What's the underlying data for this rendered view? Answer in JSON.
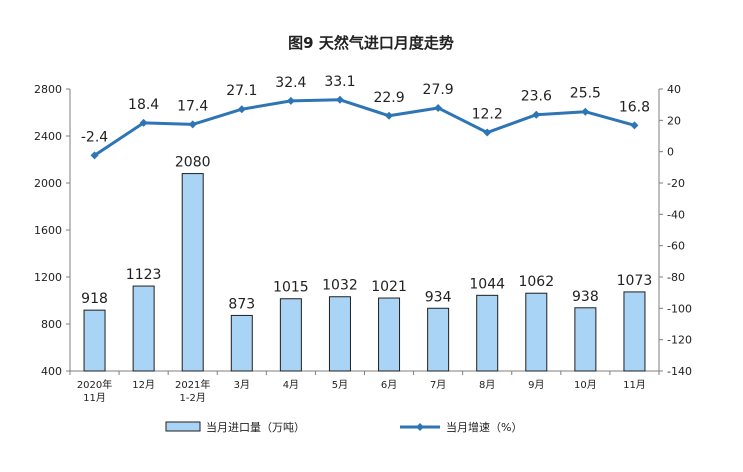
{
  "chart_data": {
    "type": "bar+line",
    "title": "图9 天然气进口月度走势",
    "categories": [
      [
        "2020年",
        "11月"
      ],
      [
        "12月"
      ],
      [
        "2021年",
        "1-2月"
      ],
      [
        "3月"
      ],
      [
        "4月"
      ],
      [
        "5月"
      ],
      [
        "6月"
      ],
      [
        "7月"
      ],
      [
        "8月"
      ],
      [
        "9月"
      ],
      [
        "10月"
      ],
      [
        "11月"
      ]
    ],
    "series": [
      {
        "name": "当月进口量（万吨）",
        "type": "bar",
        "axis": "left",
        "values": [
          918,
          1123,
          2080,
          873,
          1015,
          1032,
          1021,
          934,
          1044,
          1062,
          938,
          1073
        ],
        "labels": [
          "918",
          "1123",
          "2080",
          "873",
          "1015",
          "1032",
          "1021",
          "934",
          "1044",
          "1062",
          "938",
          "1073"
        ],
        "color": "#a9d4f5",
        "border": "#1f1f1f"
      },
      {
        "name": "当月增速（%）",
        "type": "line",
        "axis": "right",
        "values": [
          -2.4,
          18.4,
          17.4,
          27.1,
          32.4,
          33.1,
          22.9,
          27.9,
          12.2,
          23.6,
          25.5,
          16.8
        ],
        "labels": [
          "-2.4",
          "18.4",
          "17.4",
          "27.1",
          "32.4",
          "33.1",
          "22.9",
          "27.9",
          "12.2",
          "23.6",
          "25.5",
          "16.8"
        ],
        "color": "#2e75b6"
      }
    ],
    "y_left": {
      "min": 400,
      "max": 2800,
      "ticks": [
        400,
        800,
        1200,
        1600,
        2000,
        2400,
        2800
      ],
      "tick_labels": [
        "400",
        "800",
        "1200",
        "1600",
        "2000",
        "2400",
        "2800"
      ]
    },
    "y_right": {
      "min": -140,
      "max": 40,
      "ticks": [
        -140,
        -120,
        -100,
        -80,
        -60,
        -40,
        -20,
        0,
        20,
        40
      ],
      "tick_labels": [
        "-140",
        "-120",
        "-100",
        "-80",
        "-60",
        "-40",
        "-20",
        "0",
        "20",
        "40"
      ]
    },
    "grid": false,
    "legend_position": "bottom"
  }
}
